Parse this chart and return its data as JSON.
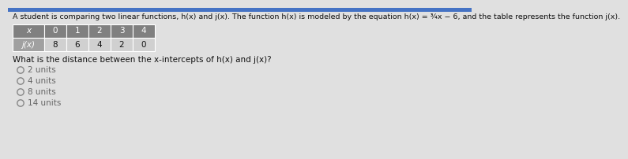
{
  "title": "A student is comparing two linear functions, h(x) and j(x). The function h(x) is modeled by the equation h(x) = ¾x − 6, and the table represents the function j(x).",
  "table_x_header": [
    "x",
    "0",
    "1",
    "2",
    "3",
    "4"
  ],
  "table_jx_label": "j(x)",
  "table_jx_values": [
    "8",
    "6",
    "4",
    "2",
    "0"
  ],
  "question": "What is the distance between the x-intercepts of h(x) and j(x)?",
  "options": [
    "2 units",
    "4 units",
    "8 units",
    "14 units"
  ],
  "top_bar_color": "#4472c4",
  "bg_color": "#e0e0e0",
  "table_header_bg": "#808080",
  "table_label_bg": "#a0a0a0",
  "table_data_bg": "#d0d0d0",
  "table_border": "#ffffff",
  "title_fontsize": 6.8,
  "table_fontsize": 7.5,
  "question_fontsize": 7.5,
  "option_fontsize": 7.5,
  "title_color": "#111111",
  "question_color": "#111111",
  "option_color": "#666666",
  "radio_color": "#888888"
}
